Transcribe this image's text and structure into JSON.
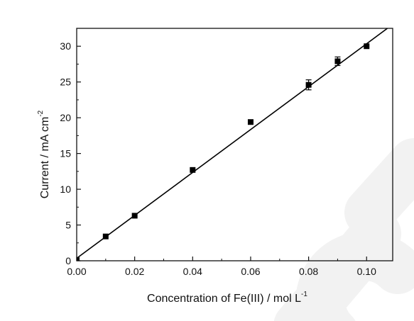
{
  "chart_data": {
    "type": "scatter",
    "xlabel": "Concentration of Fe(III) / mol L",
    "xlabel_superscript": "-1",
    "ylabel": "Current / mA cm",
    "ylabel_superscript": "-2",
    "xlim": [
      0.0,
      0.109
    ],
    "ylim": [
      0,
      32.5
    ],
    "x_ticks": [
      0.0,
      0.02,
      0.04,
      0.06,
      0.08,
      0.1
    ],
    "x_tick_labels": [
      "0.00",
      "0.02",
      "0.04",
      "0.06",
      "0.08",
      "0.10"
    ],
    "y_ticks": [
      0,
      5,
      10,
      15,
      20,
      25,
      30
    ],
    "y_tick_labels": [
      "0",
      "5",
      "10",
      "15",
      "20",
      "25",
      "30"
    ],
    "grid": false,
    "series": [
      {
        "marker": "square",
        "color": "#000000",
        "x": [
          0.0,
          0.01,
          0.02,
          0.04,
          0.06,
          0.08,
          0.09,
          0.1
        ],
        "y": [
          0.1,
          3.4,
          6.3,
          12.7,
          19.4,
          24.6,
          27.9,
          30.0
        ],
        "error": [
          0,
          0,
          0,
          0,
          0,
          0.7,
          0.6,
          0
        ]
      }
    ],
    "fit_line": {
      "type": "linear",
      "slope": 300,
      "intercept": 0.35,
      "color": "#000000"
    },
    "watermark_color": "#f2f2f2"
  }
}
